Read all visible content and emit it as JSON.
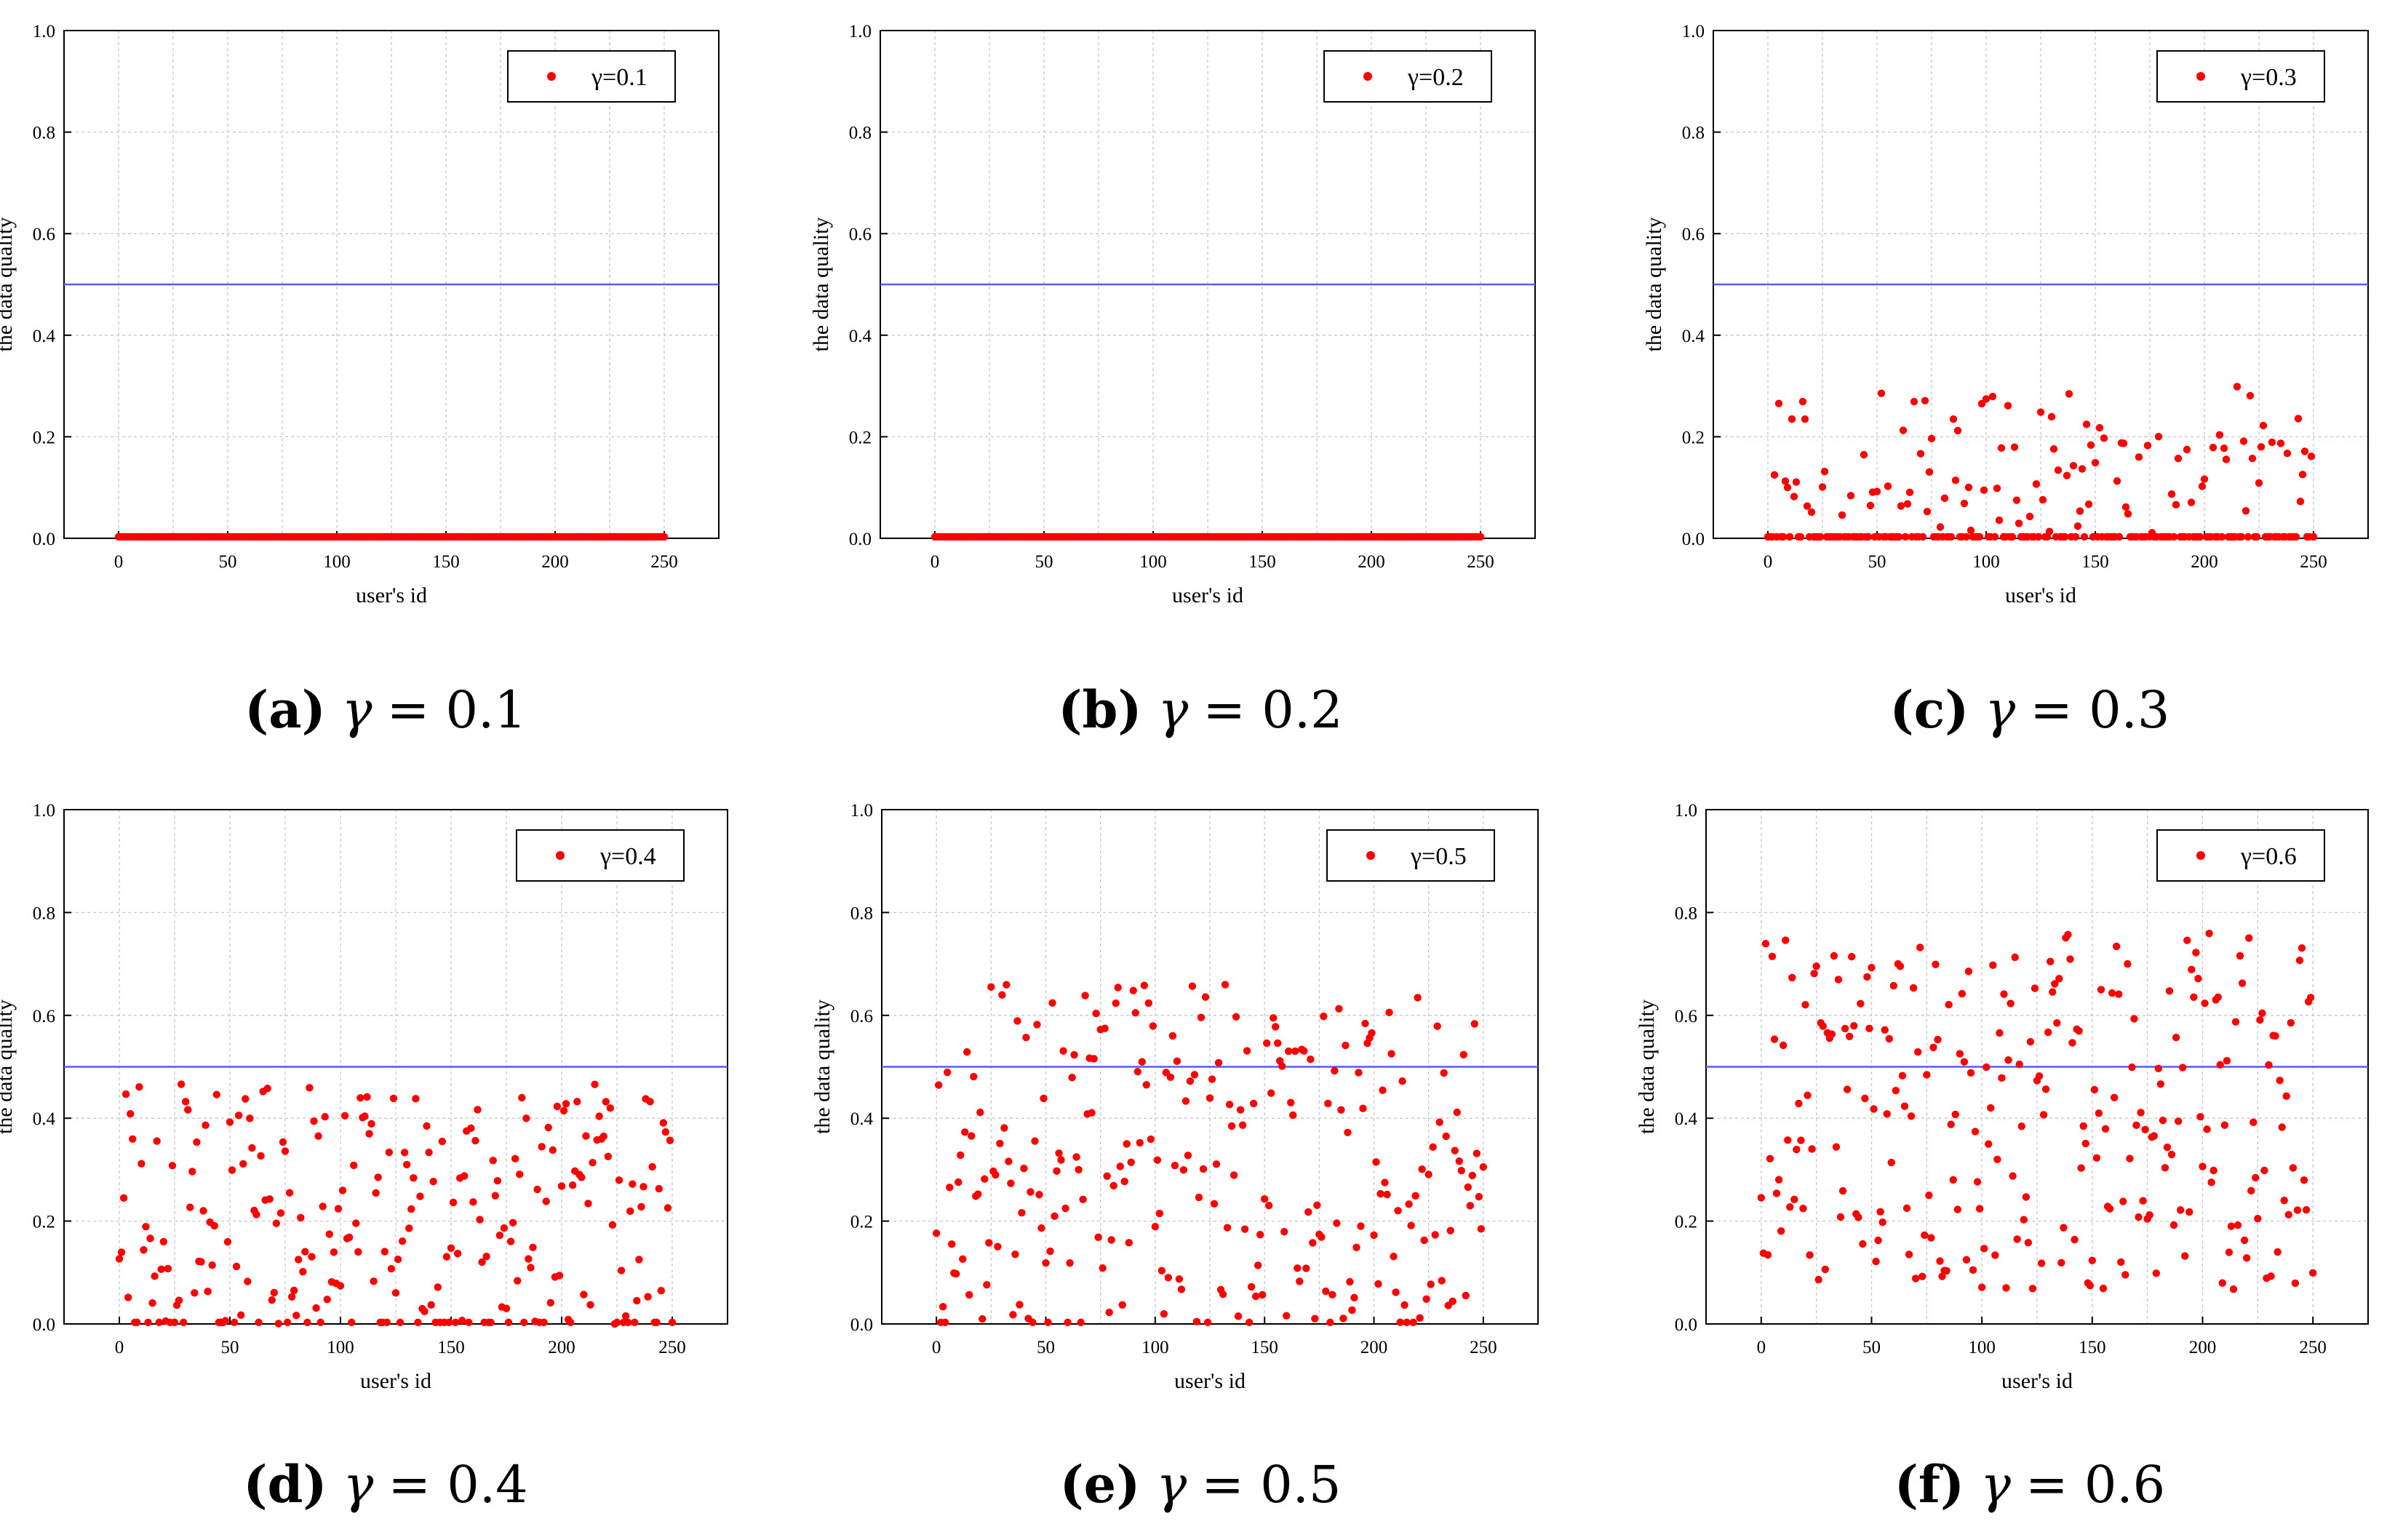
{
  "chart_data": [
    {
      "type": "scatter",
      "panel": "a",
      "caption": {
        "letter": "(a)",
        "symbol": "γ",
        "equals": "= 0.1"
      },
      "legend": "γ=0.1",
      "xlabel": "user's id",
      "ylabel": "the data quality",
      "xlim": [
        -25,
        275
      ],
      "ylim": [
        0,
        1
      ],
      "xticks": [
        "0",
        "50",
        "100",
        "150",
        "200",
        "250"
      ],
      "yticks": [
        "0.0",
        "0.2",
        "0.4",
        "0.6",
        "0.8",
        "1.0"
      ],
      "threshold": 0.5,
      "points": {
        "x_start": 0,
        "x_end": 250,
        "seed": 11,
        "zero_fraction": 1.0,
        "distribution": {
          "mode": "zero",
          "lo": 0,
          "hi": 0
        }
      }
    },
    {
      "type": "scatter",
      "panel": "b",
      "caption": {
        "letter": "(b)",
        "symbol": "γ",
        "equals": "= 0.2"
      },
      "legend": "γ=0.2",
      "xlabel": "user's id",
      "ylabel": "the data quality",
      "xlim": [
        -25,
        275
      ],
      "ylim": [
        0,
        1
      ],
      "xticks": [
        "0",
        "50",
        "100",
        "150",
        "200",
        "250"
      ],
      "yticks": [
        "0.0",
        "0.2",
        "0.4",
        "0.6",
        "0.8",
        "1.0"
      ],
      "threshold": 0.5,
      "points": {
        "x_start": 0,
        "x_end": 250,
        "seed": 22,
        "zero_fraction": 1.0,
        "distribution": {
          "mode": "zero",
          "lo": 0,
          "hi": 0
        }
      }
    },
    {
      "type": "scatter",
      "panel": "c",
      "caption": {
        "letter": "(c)",
        "symbol": "γ",
        "equals": "= 0.3"
      },
      "legend": "γ=0.3",
      "xlabel": "user's id",
      "ylabel": "the data quality",
      "xlim": [
        -25,
        275
      ],
      "ylim": [
        0,
        1
      ],
      "xticks": [
        "0",
        "50",
        "100",
        "150",
        "200",
        "250"
      ],
      "yticks": [
        "0.0",
        "0.2",
        "0.4",
        "0.6",
        "0.8",
        "1.0"
      ],
      "threshold": 0.5,
      "points": {
        "x_start": 0,
        "x_end": 250,
        "seed": 33,
        "zero_fraction": 0.55,
        "distribution": {
          "mode": "low",
          "lo": 0.0,
          "hi": 0.3
        }
      }
    },
    {
      "type": "scatter",
      "panel": "d",
      "caption": {
        "letter": "(d)",
        "symbol": "γ",
        "equals": "= 0.4"
      },
      "legend": "γ=0.4",
      "xlabel": "user's id",
      "ylabel": "the data quality",
      "xlim": [
        -25,
        275
      ],
      "ylim": [
        0,
        1
      ],
      "xticks": [
        "0",
        "50",
        "100",
        "150",
        "200",
        "250"
      ],
      "yticks": [
        "0.0",
        "0.2",
        "0.4",
        "0.6",
        "0.8",
        "1.0"
      ],
      "threshold": 0.5,
      "points": {
        "x_start": 0,
        "x_end": 250,
        "seed": 44,
        "zero_fraction": 0.22,
        "distribution": {
          "mode": "uniform",
          "lo": 0.0,
          "hi": 0.47
        }
      }
    },
    {
      "type": "scatter",
      "panel": "e",
      "caption": {
        "letter": "(e)",
        "symbol": "γ",
        "equals": "= 0.5"
      },
      "legend": "γ=0.5",
      "xlabel": "user's id",
      "ylabel": "the data quality",
      "xlim": [
        -25,
        275
      ],
      "ylim": [
        0,
        1
      ],
      "xticks": [
        "0",
        "50",
        "100",
        "150",
        "200",
        "250"
      ],
      "yticks": [
        "0.0",
        "0.2",
        "0.4",
        "0.6",
        "0.8",
        "1.0"
      ],
      "threshold": 0.5,
      "points": {
        "x_start": 0,
        "x_end": 250,
        "seed": 55,
        "zero_fraction": 0.04,
        "distribution": {
          "mode": "uniform",
          "lo": 0.0,
          "hi": 0.66
        }
      }
    },
    {
      "type": "scatter",
      "panel": "f",
      "caption": {
        "letter": "(f)",
        "symbol": "γ",
        "equals": "= 0.6"
      },
      "legend": "γ=0.6",
      "xlabel": "user's id",
      "ylabel": "the data quality",
      "xlim": [
        -25,
        275
      ],
      "ylim": [
        0,
        1
      ],
      "xticks": [
        "0",
        "50",
        "100",
        "150",
        "200",
        "250"
      ],
      "yticks": [
        "0.0",
        "0.2",
        "0.4",
        "0.6",
        "0.8",
        "1.0"
      ],
      "threshold": 0.5,
      "points": {
        "x_start": 0,
        "x_end": 250,
        "seed": 66,
        "zero_fraction": 0.0,
        "distribution": {
          "mode": "uniform",
          "lo": 0.06,
          "hi": 0.76
        }
      }
    }
  ],
  "colors": {
    "points": "#ff0000",
    "threshold": "#5a5aff",
    "grid": "#c8c8c8",
    "axis": "#000000"
  }
}
